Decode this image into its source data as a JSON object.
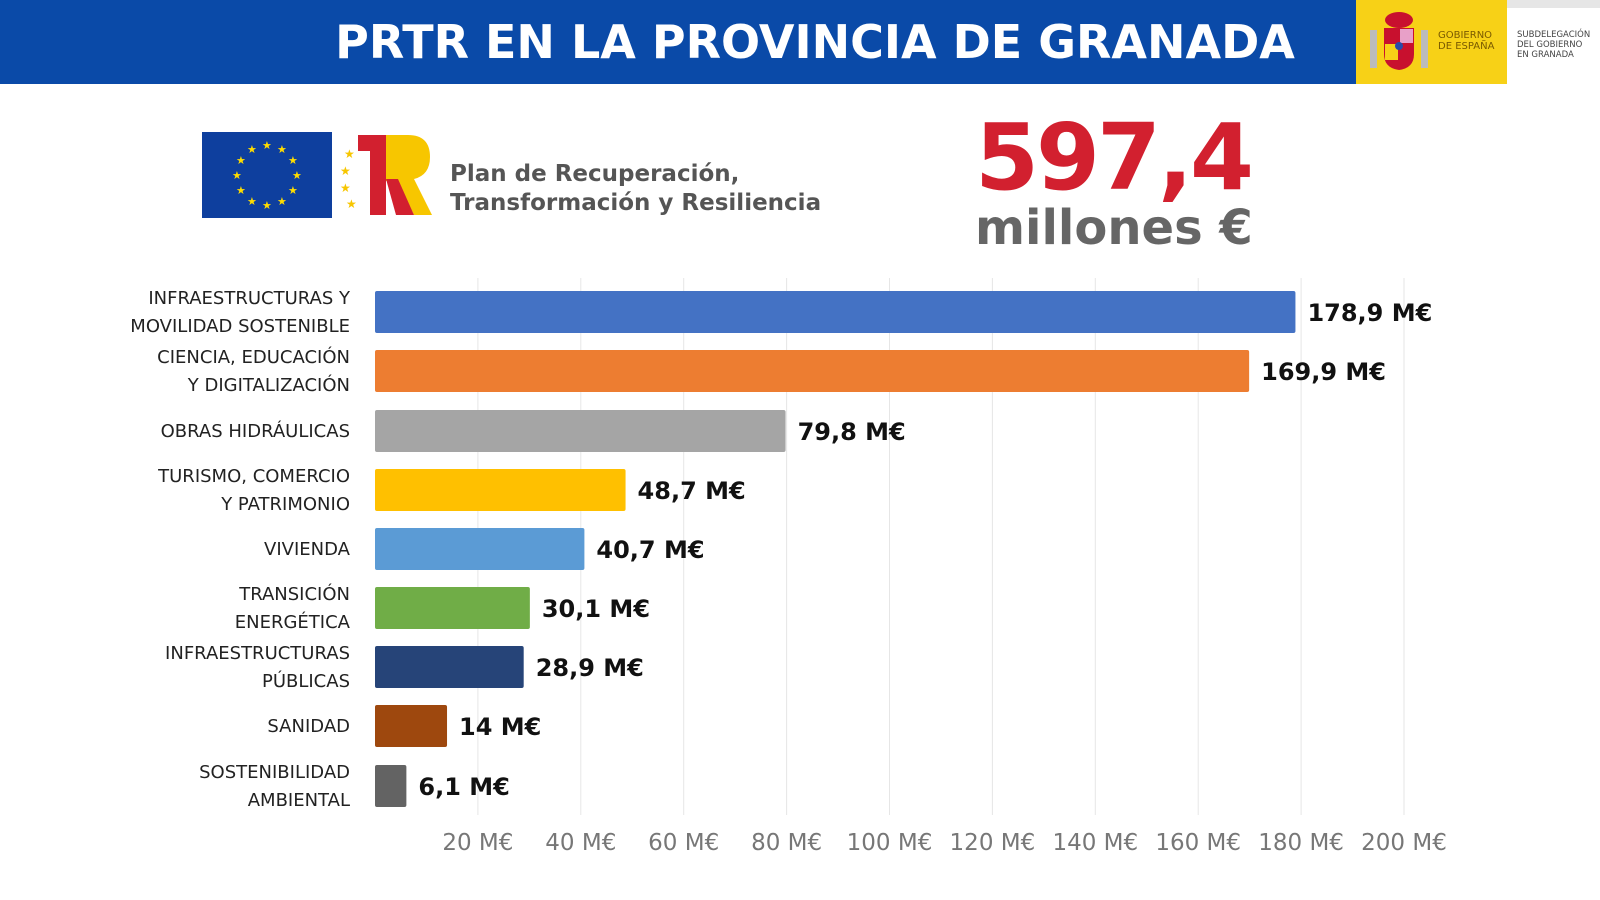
{
  "header": {
    "title": "PRTR EN LA PROVINCIA DE GRANADA",
    "gobierno": [
      "GOBIERNO",
      "DE ESPAÑA"
    ],
    "subdelegacion": [
      "SUBDELEGACIÓN",
      "DEL GOBIERNO",
      "EN GRANADA"
    ]
  },
  "plan": {
    "line1": "Plan de Recuperación,",
    "line2": "Transformación y Resiliencia"
  },
  "total": {
    "value": "597,4",
    "unit": "millones €",
    "color": "#d2202f"
  },
  "chart_data": {
    "type": "bar",
    "orientation": "horizontal",
    "categories": [
      [
        "INFRAESTRUCTURAS Y",
        "MOVILIDAD SOSTENIBLE"
      ],
      [
        "CIENCIA, EDUCACIÓN",
        "Y DIGITALIZACIÓN"
      ],
      [
        "OBRAS HIDRÁULICAS"
      ],
      [
        "TURISMO, COMERCIO",
        "Y PATRIMONIO"
      ],
      [
        "VIVIENDA"
      ],
      [
        "TRANSICIÓN",
        "ENERGÉTICA"
      ],
      [
        "INFRAESTRUCTURAS",
        "PÚBLICAS"
      ],
      [
        "SANIDAD"
      ],
      [
        "SOSTENIBILIDAD",
        "AMBIENTAL"
      ]
    ],
    "values": [
      178.9,
      169.9,
      79.8,
      48.7,
      40.7,
      30.1,
      28.9,
      14,
      6.1
    ],
    "data_labels": [
      "178,9 M€",
      "169,9 M€",
      "79,8 M€",
      "48,7 M€",
      "40,7 M€",
      "30,1 M€",
      "28,9 M€",
      "14 M€",
      "6,1 M€"
    ],
    "colors": [
      "#4472c4",
      "#ed7d31",
      "#a5a5a5",
      "#ffc000",
      "#5b9bd5",
      "#70ad47",
      "#264478",
      "#9e480e",
      "#636363"
    ],
    "xlim": [
      0,
      200
    ],
    "x_ticks": [
      20,
      40,
      60,
      80,
      100,
      120,
      140,
      160,
      180,
      200
    ],
    "x_tick_labels": [
      "20 M€",
      "40 M€",
      "60 M€",
      "80 M€",
      "100 M€",
      "120 M€",
      "140 M€",
      "160 M€",
      "180 M€",
      "200 M€"
    ],
    "grid": true
  }
}
